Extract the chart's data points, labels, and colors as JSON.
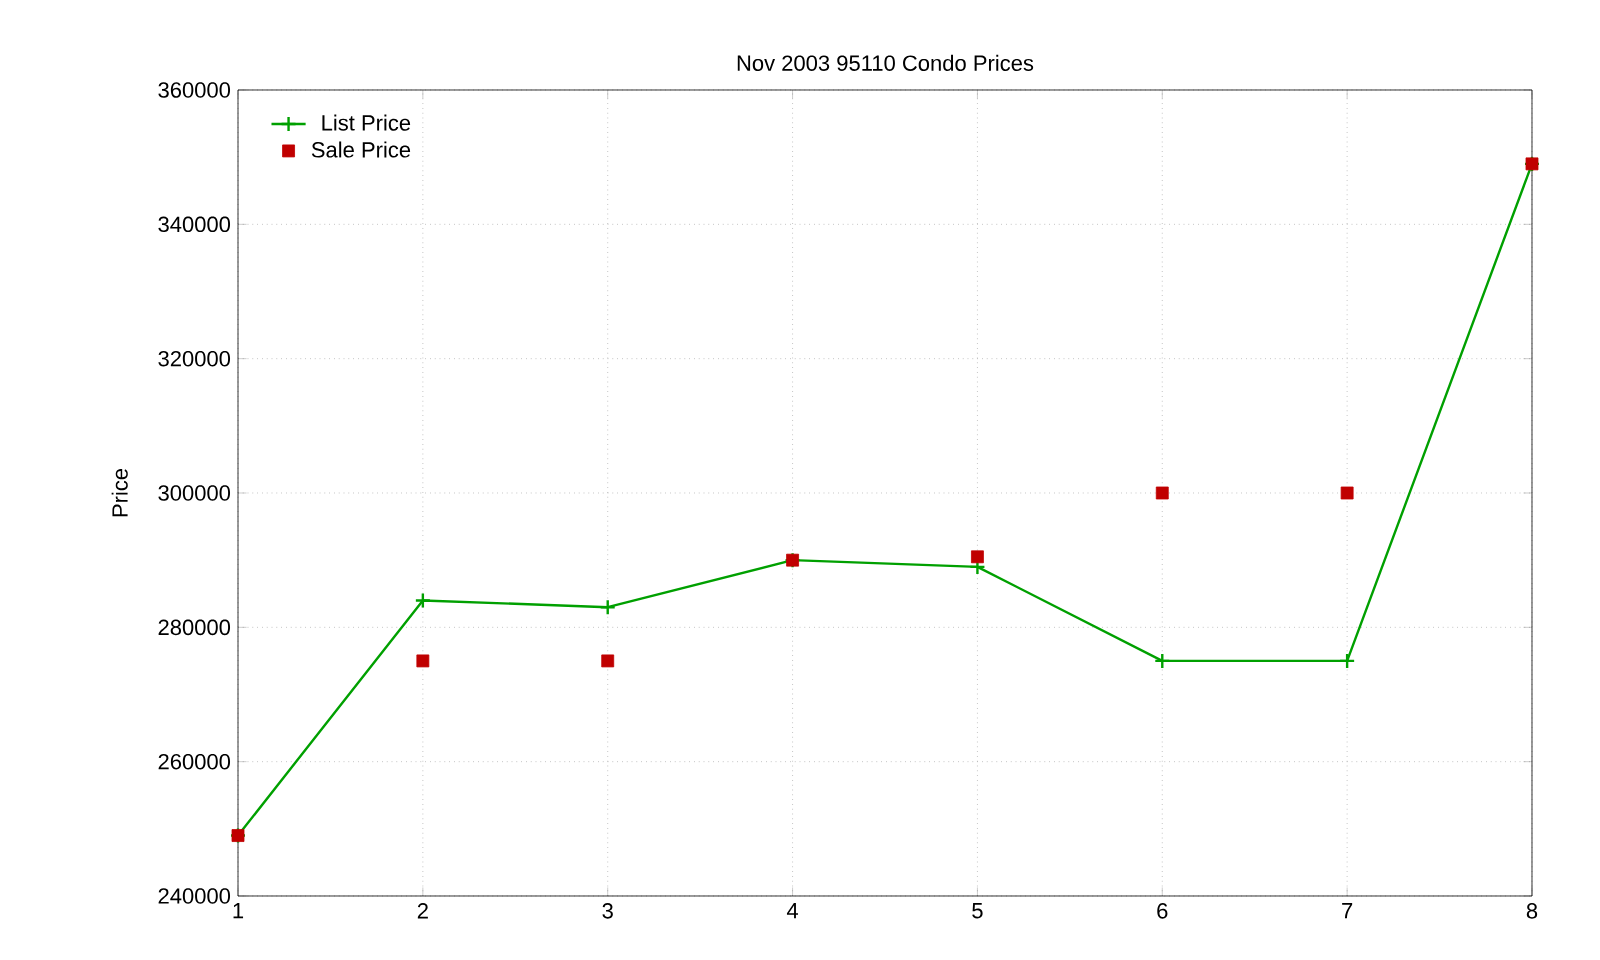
{
  "chart_data": {
    "type": "line",
    "title": "Nov 2003 95110 Condo Prices",
    "ylabel": "Price",
    "x": [
      1,
      2,
      3,
      4,
      5,
      6,
      7,
      8
    ],
    "series": [
      {
        "name": "List Price",
        "color": "#00a000",
        "marker": "cross",
        "values": [
          249000,
          284000,
          283000,
          290000,
          289000,
          275000,
          275000,
          349000
        ]
      },
      {
        "name": "Sale Price",
        "type": "scatter",
        "color": "#c00000",
        "marker": "square",
        "values": [
          249000,
          275000,
          275000,
          290000,
          290500,
          300000,
          300000,
          349000
        ]
      }
    ],
    "xlim": [
      1,
      8
    ],
    "ylim": [
      240000,
      360000
    ],
    "xticks": [
      1,
      2,
      3,
      4,
      5,
      6,
      7,
      8
    ],
    "yticks": [
      240000,
      260000,
      280000,
      300000,
      320000,
      340000,
      360000
    ],
    "grid": true,
    "legend": "top left"
  }
}
